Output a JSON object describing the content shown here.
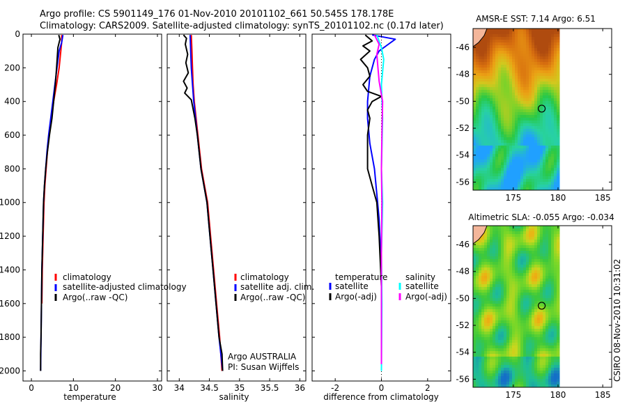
{
  "header": {
    "line1": "Argo profile: CS 5901149_176 01-Nov-2010 20101102_661 50.545S 178.178E",
    "line2": "Climatology: CARS2009. Satellite-adjusted climatology: synTS_20101102.nc (0.17d later)"
  },
  "colors": {
    "climatology": "#ff0000",
    "satellite": "#0000ff",
    "argo": "#000000",
    "satellite_diff": "#00ffff",
    "argo_sal_diff": "#ff00ff",
    "land": "#f4b69a"
  },
  "chart_data": [
    {
      "type": "line",
      "id": "temperature",
      "xlabel": "temperature",
      "ylabel": "",
      "xlim": [
        -2,
        31
      ],
      "ylim": [
        2060,
        0
      ],
      "xticks": [
        0,
        10,
        20,
        30
      ],
      "yticks": [
        0,
        200,
        400,
        600,
        800,
        1000,
        1200,
        1400,
        1600,
        1800,
        2000
      ],
      "series": [
        {
          "name": "climatology",
          "color": "#ff0000",
          "points": [
            [
              7.2,
              5
            ],
            [
              7.2,
              50
            ],
            [
              7.0,
              100
            ],
            [
              6.6,
              200
            ],
            [
              6.0,
              300
            ],
            [
              5.3,
              400
            ],
            [
              4.7,
              500
            ],
            [
              4.2,
              600
            ],
            [
              3.8,
              700
            ],
            [
              3.5,
              800
            ],
            [
              3.2,
              900
            ],
            [
              3.0,
              1000
            ],
            [
              2.8,
              1200
            ],
            [
              2.6,
              1400
            ],
            [
              2.5,
              1600
            ]
          ]
        },
        {
          "name": "satellite-adjusted climatology",
          "color": "#0000ff",
          "points": [
            [
              7.5,
              5
            ],
            [
              7.2,
              50
            ],
            [
              6.6,
              100
            ],
            [
              6.1,
              200
            ],
            [
              5.6,
              300
            ],
            [
              5.1,
              400
            ],
            [
              4.6,
              500
            ],
            [
              4.1,
              600
            ],
            [
              3.7,
              700
            ],
            [
              3.4,
              800
            ],
            [
              3.1,
              900
            ],
            [
              2.9,
              1000
            ],
            [
              2.7,
              1200
            ],
            [
              2.5,
              1400
            ],
            [
              2.4,
              1600
            ],
            [
              2.3,
              1800
            ],
            [
              2.2,
              2000
            ]
          ]
        },
        {
          "name": "Argo(..raw -QC)",
          "color": "#000000",
          "points": [
            [
              6.5,
              5
            ],
            [
              6.8,
              30
            ],
            [
              6.3,
              80
            ],
            [
              6.0,
              200
            ],
            [
              5.7,
              300
            ],
            [
              5.3,
              400
            ],
            [
              4.9,
              500
            ],
            [
              4.3,
              600
            ],
            [
              3.8,
              700
            ],
            [
              3.4,
              800
            ],
            [
              3.1,
              900
            ],
            [
              2.9,
              1000
            ],
            [
              2.7,
              1200
            ],
            [
              2.5,
              1400
            ],
            [
              2.4,
              1600
            ],
            [
              2.3,
              1800
            ],
            [
              2.2,
              1900
            ],
            [
              2.2,
              2000
            ]
          ]
        }
      ],
      "legend": [
        "climatology",
        "satellite-adjusted climatology",
        "Argo(..raw -QC)"
      ]
    },
    {
      "type": "line",
      "id": "salinity",
      "xlabel": "salinity",
      "ylabel": "",
      "xlim": [
        33.8,
        36.1
      ],
      "ylim": [
        2060,
        0
      ],
      "xticks": [
        34,
        34.5,
        35,
        35.5,
        36
      ],
      "series": [
        {
          "name": "climatology",
          "color": "#ff0000",
          "points": [
            [
              34.2,
              5
            ],
            [
              34.21,
              100
            ],
            [
              34.22,
              200
            ],
            [
              34.23,
              300
            ],
            [
              34.25,
              400
            ],
            [
              34.28,
              500
            ],
            [
              34.31,
              600
            ],
            [
              34.34,
              700
            ],
            [
              34.37,
              800
            ],
            [
              34.42,
              900
            ],
            [
              34.47,
              1000
            ],
            [
              34.52,
              1200
            ],
            [
              34.57,
              1400
            ],
            [
              34.62,
              1600
            ],
            [
              34.67,
              1800
            ],
            [
              34.71,
              2000
            ]
          ]
        },
        {
          "name": "satellite adj. clim.",
          "color": "#0000ff",
          "points": [
            [
              34.18,
              5
            ],
            [
              34.19,
              100
            ],
            [
              34.2,
              200
            ],
            [
              34.22,
              300
            ],
            [
              34.24,
              400
            ],
            [
              34.27,
              500
            ],
            [
              34.3,
              600
            ],
            [
              34.33,
              700
            ],
            [
              34.36,
              800
            ],
            [
              34.41,
              900
            ],
            [
              34.46,
              1000
            ],
            [
              34.51,
              1200
            ],
            [
              34.56,
              1400
            ],
            [
              34.61,
              1600
            ],
            [
              34.66,
              1800
            ],
            [
              34.72,
              2000
            ]
          ]
        },
        {
          "name": "Argo(..raw -QC)",
          "color": "#000000",
          "points": [
            [
              34.07,
              5
            ],
            [
              34.12,
              25
            ],
            [
              34.1,
              60
            ],
            [
              34.14,
              120
            ],
            [
              34.11,
              170
            ],
            [
              34.15,
              230
            ],
            [
              34.07,
              280
            ],
            [
              34.13,
              320
            ],
            [
              34.09,
              350
            ],
            [
              34.2,
              390
            ],
            [
              34.26,
              500
            ],
            [
              34.3,
              600
            ],
            [
              34.33,
              700
            ],
            [
              34.36,
              800
            ],
            [
              34.41,
              900
            ],
            [
              34.46,
              1000
            ],
            [
              34.51,
              1200
            ],
            [
              34.56,
              1400
            ],
            [
              34.61,
              1600
            ],
            [
              34.66,
              1800
            ],
            [
              34.71,
              1900
            ],
            [
              34.72,
              2000
            ]
          ]
        }
      ],
      "legend": [
        "climatology",
        "satellite adj. clim.",
        "Argo(..raw -QC)"
      ],
      "annotation": [
        "Argo AUSTRALIA",
        "PI: Susan Wijffels"
      ]
    },
    {
      "type": "line",
      "id": "difference",
      "xlabel": "difference from climatology",
      "ylabel": "",
      "xlim": [
        -3,
        3
      ],
      "ylim": [
        2060,
        0
      ],
      "xticks": [
        -2,
        0,
        2
      ],
      "series": [
        {
          "name": "temperature satellite",
          "color": "#0000ff",
          "points": [
            [
              -0.4,
              5
            ],
            [
              0.6,
              30
            ],
            [
              0.3,
              60
            ],
            [
              -0.1,
              100
            ],
            [
              -0.3,
              150
            ],
            [
              -0.5,
              250
            ],
            [
              -0.6,
              400
            ],
            [
              -0.6,
              500
            ],
            [
              -0.5,
              650
            ],
            [
              -0.3,
              800
            ],
            [
              -0.2,
              950
            ],
            [
              -0.1,
              1100
            ],
            [
              0,
              1400
            ],
            [
              0,
              1700
            ],
            [
              0,
              1960
            ]
          ]
        },
        {
          "name": "temperature Argo(-adj)",
          "color": "#000000",
          "points": [
            [
              -0.7,
              5
            ],
            [
              -0.4,
              40
            ],
            [
              -0.8,
              70
            ],
            [
              -0.5,
              100
            ],
            [
              -0.9,
              150
            ],
            [
              -0.6,
              200
            ],
            [
              -0.5,
              250
            ],
            [
              -0.8,
              300
            ],
            [
              -0.6,
              340
            ],
            [
              0,
              370
            ],
            [
              -0.4,
              400
            ],
            [
              -0.6,
              450
            ],
            [
              -0.5,
              500
            ],
            [
              -0.6,
              600
            ],
            [
              -0.6,
              700
            ],
            [
              -0.6,
              800
            ],
            [
              -0.4,
              900
            ],
            [
              -0.2,
              1000
            ],
            [
              -0.1,
              1200
            ],
            [
              0,
              1500
            ],
            [
              0,
              1800
            ],
            [
              0,
              1960
            ]
          ]
        },
        {
          "name": "salinity satellite",
          "color": "#00ffff",
          "points": [
            [
              -0.2,
              5
            ],
            [
              0,
              80
            ],
            [
              0.1,
              150
            ],
            [
              0,
              300
            ],
            [
              0.05,
              500
            ],
            [
              0,
              800
            ],
            [
              0.05,
              1000
            ],
            [
              0,
              1300
            ],
            [
              0.02,
              1600
            ],
            [
              0,
              2000
            ]
          ]
        },
        {
          "name": "salinity Argo(-adj)",
          "color": "#ff00ff",
          "points": [
            [
              -0.3,
              5
            ],
            [
              -0.1,
              60
            ],
            [
              -0.2,
              120
            ],
            [
              -0.15,
              200
            ],
            [
              -0.1,
              280
            ],
            [
              0.05,
              400
            ],
            [
              0.02,
              600
            ],
            [
              0,
              800
            ],
            [
              0.02,
              1000
            ],
            [
              0,
              1300
            ],
            [
              0,
              1600
            ],
            [
              0,
              1960
            ]
          ]
        }
      ],
      "legend_headers": [
        "temperature",
        "salinity"
      ],
      "legend": [
        "satellite",
        "Argo(-adj)",
        "satellite",
        "Argo(-adj)"
      ]
    },
    {
      "type": "heatmap",
      "id": "sst_map",
      "title": "AMSR-E SST: 7.14 Argo: 6.51",
      "xlim": [
        170.5,
        186
      ],
      "ylim": [
        -56.6,
        -44.6
      ],
      "xticks": [
        175,
        180,
        185
      ],
      "yticks": [
        -46,
        -48,
        -50,
        -52,
        -54,
        -56
      ],
      "marker": {
        "lon": 178.178,
        "lat": -50.545
      }
    },
    {
      "type": "heatmap",
      "id": "sla_map",
      "title": "Altimetric SLA: -0.055 Argo: -0.034",
      "xlim": [
        170.5,
        186
      ],
      "ylim": [
        -56.6,
        -44.6
      ],
      "xticks": [
        175,
        180,
        185
      ],
      "yticks": [
        -46,
        -48,
        -50,
        -52,
        -54,
        -56
      ],
      "marker": {
        "lon": 178.178,
        "lat": -50.545
      }
    }
  ],
  "footer": {
    "credit": "CSIRO 08-Nov-2010 10:31:02"
  }
}
